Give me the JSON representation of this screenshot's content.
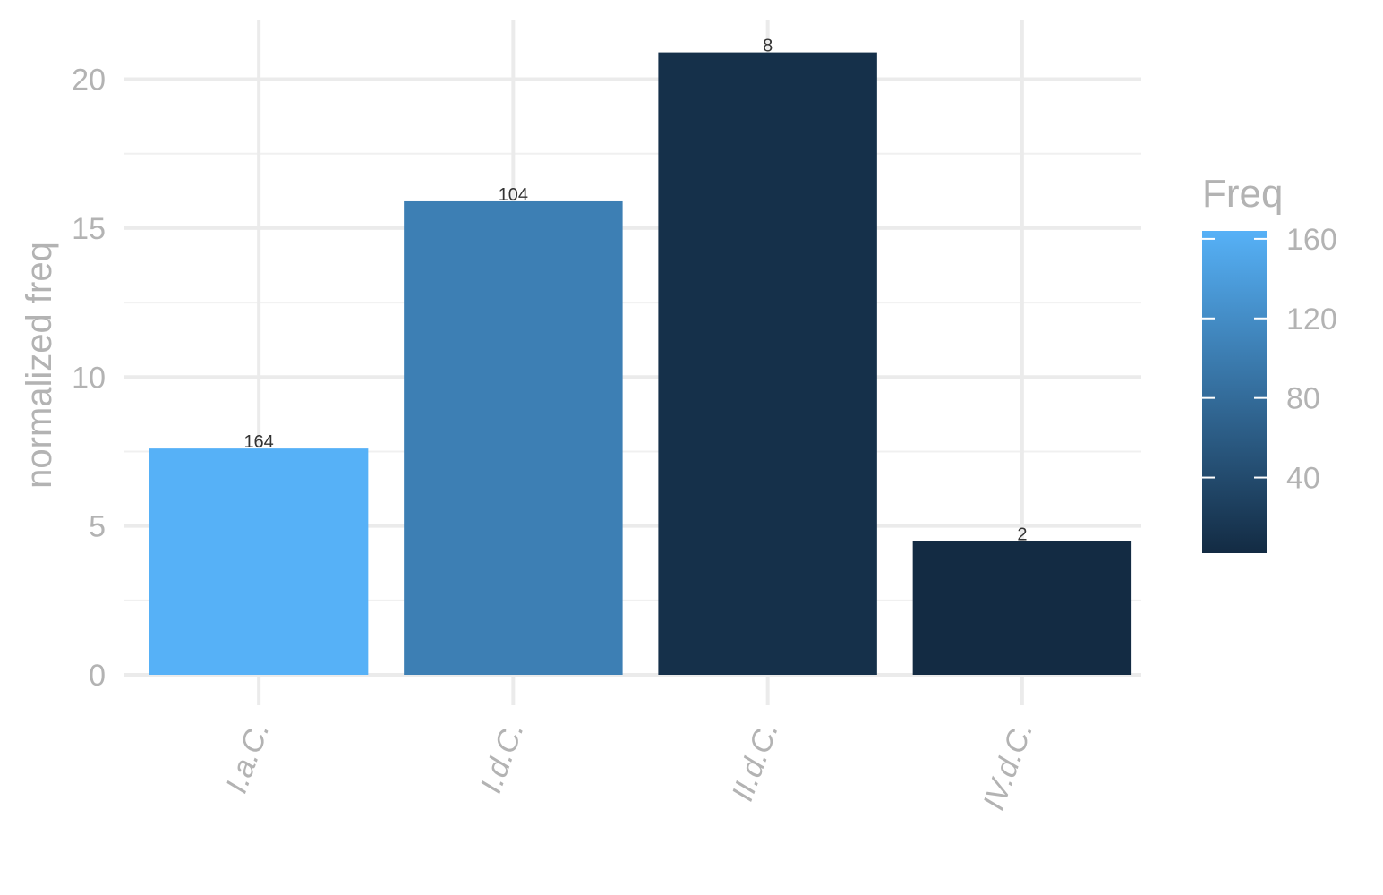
{
  "chart_data": {
    "type": "bar",
    "categories": [
      "I.a.C.",
      "I.d.C.",
      "II.d.C.",
      "IV.d.C."
    ],
    "values": [
      7.6,
      15.9,
      20.9,
      4.5
    ],
    "bar_labels": [
      "164",
      "104",
      "8",
      "2"
    ],
    "fill_values": [
      164,
      104,
      8,
      2
    ],
    "ylabel": "normalized freq",
    "xlabel": "",
    "ylim": [
      0,
      22
    ],
    "y_ticks": [
      0,
      5,
      10,
      15,
      20
    ],
    "y_tick_labels": [
      "0",
      "5",
      "10",
      "15",
      "20"
    ],
    "grid": true,
    "legend": {
      "title": "Freq",
      "placement": "right",
      "range": [
        2,
        164
      ],
      "ticks": [
        40,
        80,
        120,
        160
      ],
      "tick_labels": [
        "40",
        "80",
        "120",
        "160"
      ],
      "color_low": "#132b43",
      "color_high": "#56b1f7"
    }
  }
}
